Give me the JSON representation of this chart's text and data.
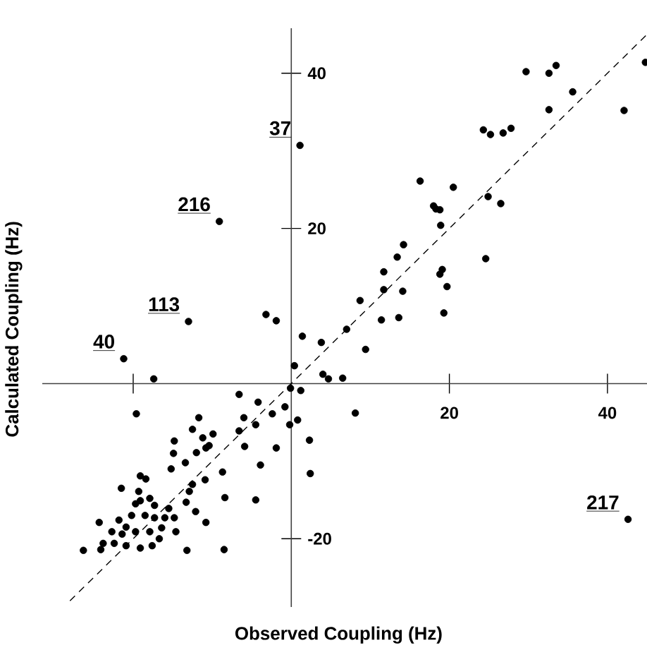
{
  "chart_data": {
    "type": "scatter",
    "xlabel": "Observed  Coupling (Hz)",
    "ylabel": "Calculated  Coupling (Hz)",
    "xlim": [
      -31.5,
      45
    ],
    "ylim": [
      -28.8,
      45.8
    ],
    "xticks": [
      {
        "value": -20,
        "label": null
      },
      20,
      40
    ],
    "yticks": [
      -20,
      20,
      40
    ],
    "annotations": [
      {
        "text": "37",
        "x": 1.1,
        "y": 30.7
      },
      {
        "text": "216",
        "x": -9.1,
        "y": 20.9
      },
      {
        "text": "113",
        "x": -13.0,
        "y": 8.0
      },
      {
        "text": "40",
        "x": -21.2,
        "y": 3.2
      },
      {
        "text": "217",
        "x": 42.6,
        "y": -17.5
      }
    ],
    "series": [
      {
        "color": "#000000",
        "marker": "circle",
        "x": [
          1.1,
          29.7,
          32.6,
          33.5,
          44.8,
          35.6,
          32.6,
          42.1,
          24.3,
          25.2,
          26.8,
          27.8,
          16.3,
          20.5,
          18.0,
          18.3,
          18.8,
          24.9,
          26.5,
          18.9,
          24.6,
          14.2,
          13.4,
          11.7,
          19.1,
          18.8,
          19.7,
          11.7,
          14.1,
          8.7,
          19.3,
          11.4,
          13.6,
          7.0,
          9.4,
          1.4,
          3.8,
          0.4,
          4.0,
          4.7,
          6.5,
          -0.1,
          1.2,
          -0.8,
          8.1,
          -0.2,
          0.8,
          2.3,
          2.4,
          42.6,
          -9.1,
          -13.0,
          -3.2,
          -1.9,
          -21.2,
          -17.4,
          -6.6,
          -19.6,
          -4.2,
          -2.4,
          -6.0,
          -4.5,
          -11.7,
          -12.5,
          -11.2,
          -9.9,
          -10.4,
          -6.6,
          -5.9,
          -1.9,
          -14.8,
          -14.9,
          -13.4,
          -12.0,
          -10.8,
          -15.2,
          -8.7,
          -3.9,
          -10.9,
          -12.5,
          -12.9,
          -21.5,
          -19.1,
          -18.4,
          -19.3,
          -17.9,
          -19.1,
          -19.7,
          -17.3,
          -8.4,
          -4.5,
          -15.5,
          -13.3,
          -12.1,
          -10.8,
          -14.8,
          -16.0,
          -17.3,
          -18.5,
          -20.2,
          -21.8,
          -24.3,
          -20.9,
          -22.7,
          -21.4,
          -19.7,
          -17.9,
          -16.4,
          -14.6,
          -23.8,
          -22.4,
          -20.9,
          -19.1,
          -17.6,
          -16.7,
          -26.3,
          -24.1,
          -13.2,
          -8.5
        ],
        "values": [
          30.7,
          40.2,
          40.0,
          41.0,
          41.4,
          37.6,
          35.3,
          35.2,
          32.7,
          32.1,
          32.3,
          32.9,
          26.1,
          25.3,
          22.9,
          22.5,
          22.4,
          24.1,
          23.2,
          20.4,
          16.1,
          17.9,
          16.3,
          14.4,
          14.7,
          14.1,
          12.5,
          12.1,
          11.9,
          10.7,
          9.1,
          8.2,
          8.5,
          7.0,
          4.4,
          6.1,
          5.3,
          2.3,
          1.2,
          0.6,
          0.7,
          -0.6,
          -0.9,
          -3.0,
          -3.8,
          -5.3,
          -4.7,
          -7.3,
          -11.6,
          -17.5,
          20.9,
          8.0,
          8.9,
          8.1,
          3.2,
          0.6,
          -1.4,
          -3.9,
          -2.4,
          -3.9,
          -4.4,
          -5.3,
          -4.4,
          -5.9,
          -7.0,
          -6.5,
          -8.0,
          -6.1,
          -8.1,
          -8.3,
          -7.4,
          -9.0,
          -10.2,
          -8.9,
          -8.3,
          -11.0,
          -11.4,
          -10.5,
          -12.4,
          -13.0,
          -13.9,
          -13.5,
          -11.9,
          -12.3,
          -13.9,
          -14.8,
          -15.1,
          -15.5,
          -15.7,
          -14.7,
          -15.0,
          -16.1,
          -15.3,
          -16.5,
          -17.9,
          -17.3,
          -17.3,
          -17.3,
          -17.0,
          -17.0,
          -17.6,
          -17.9,
          -18.5,
          -19.1,
          -19.4,
          -19.1,
          -19.1,
          -18.6,
          -19.1,
          -20.6,
          -20.6,
          -20.9,
          -21.2,
          -20.9,
          -20.0,
          -21.5,
          -21.4,
          -21.5,
          -21.4
        ]
      },
      {
        "type": "line",
        "color": "#000000",
        "marker": "none",
        "line_style": "dashed",
        "x": [
          -28,
          45
        ],
        "values": [
          -28,
          45
        ]
      }
    ]
  }
}
